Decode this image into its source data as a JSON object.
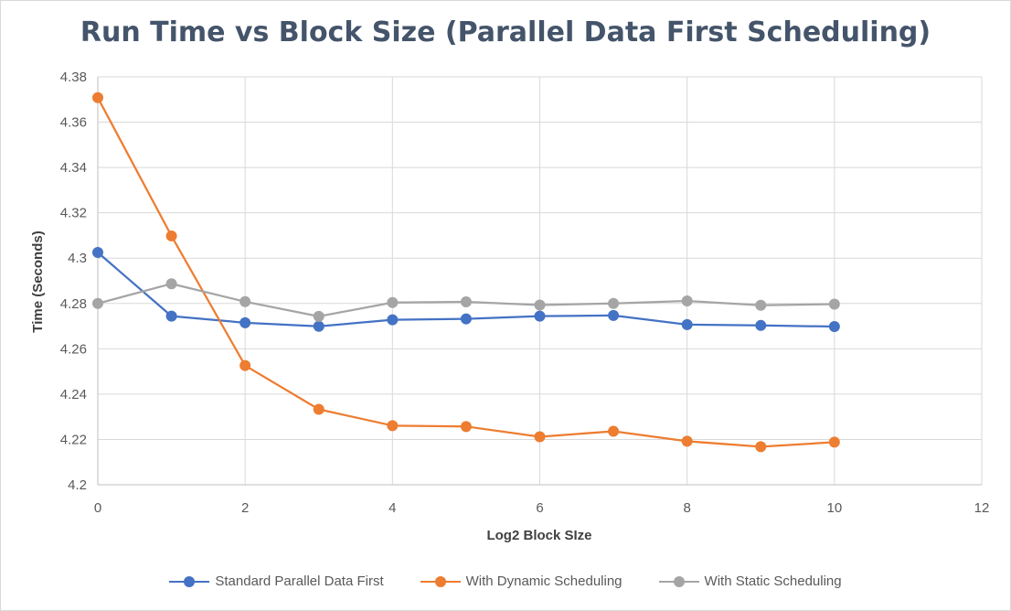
{
  "chart_data": {
    "type": "line",
    "title": "Run Time vs Block Size (Parallel Data First Scheduling)",
    "xlabel": "Log2 Block SIze",
    "ylabel": "Time (Seconds)",
    "xlim": [
      0,
      12
    ],
    "ylim": [
      4.2,
      4.38
    ],
    "x_ticks": [
      "0",
      "2",
      "4",
      "6",
      "8",
      "10",
      "12"
    ],
    "y_ticks": [
      "4.2",
      "4.22",
      "4.24",
      "4.26",
      "4.28",
      "4.3",
      "4.32",
      "4.34",
      "4.36",
      "4.38"
    ],
    "grid": true,
    "legend_position": "bottom",
    "x": [
      0,
      1,
      2,
      3,
      4,
      5,
      6,
      7,
      8,
      9,
      10
    ],
    "series": [
      {
        "name": "Standard Parallel Data First",
        "color": "#4472c4",
        "values": [
          4.3025,
          4.2744,
          4.2715,
          4.2699,
          4.2728,
          4.2732,
          4.2744,
          4.2747,
          4.2707,
          4.2703,
          4.2698
        ]
      },
      {
        "name": "With Dynamic Scheduling",
        "color": "#ed7d31",
        "values": [
          4.3708,
          4.3098,
          4.2526,
          4.2333,
          4.2261,
          4.2257,
          4.2212,
          4.2236,
          4.2192,
          4.2168,
          4.2188
        ]
      },
      {
        "name": "With Static Scheduling",
        "color": "#a5a5a5",
        "values": [
          4.28,
          4.2887,
          4.2808,
          4.2743,
          4.2804,
          4.2807,
          4.2793,
          4.28,
          4.2811,
          4.2792,
          4.2797
        ]
      }
    ]
  }
}
